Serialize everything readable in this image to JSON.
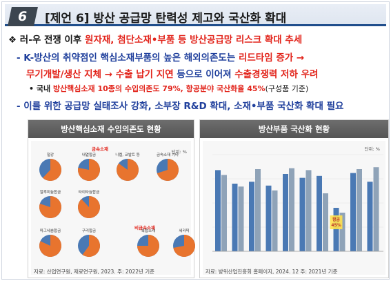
{
  "header": {
    "number": "6",
    "title": "[제언 6] 방산 공급망 탄력성 제고와 국산화 확대"
  },
  "body": {
    "line1": {
      "prefix": "❖ 러-우 전쟁 이후 ",
      "highlight": "원자재, 첨단소재•부품 등 방산공급망 리스크 확대 추세"
    },
    "line2": {
      "prefix": "- K-방산의 취약점인 핵심소재부품의 높은 해외의존도는 ",
      "highlight": "리드타임 증가 →"
    },
    "line3": {
      "highlight": "무기개발/생산 지체 → 수출 납기 지연",
      "middle": " 등으로 이어져 ",
      "highlight2": "수출경쟁력 저하 우려"
    },
    "line4": {
      "prefix": "• 국내 ",
      "highlight": "방산핵심소재 10종의 수입의존도 79%, 항공분야 국산화율 45%",
      "suffix": "(구성품 기준)"
    },
    "line5": {
      "text": "- 이를 위한 공급망 실태조사 강화, 소부장 R&D 확대, 소재•부품 국산화 확대 필요"
    }
  },
  "left_panel": {
    "title": "방산핵심소재 수입의존도 현황",
    "unit": "단위: %",
    "section_metal": "금속소재",
    "section_nonmetal": "비금속소재",
    "source": "자료: 산업연구원, 재료연구원, 2023.  주: 2022년 기준",
    "pies": [
      {
        "name": "철강",
        "share": 0.62
      },
      {
        "name": "내열합금",
        "share": 0.78
      },
      {
        "name": "니켈, 코발트 등",
        "share": 0.85
      },
      {
        "name": "금속소재 기타",
        "share": 0.7
      },
      {
        "name": "알루미늄합금",
        "share": 0.8
      },
      {
        "name": "타이타늄합금",
        "share": 0.88
      },
      {
        "name": "마그네슘합금",
        "share": 0.82
      },
      {
        "name": "구리합금",
        "share": 0.6
      },
      {
        "name": "복합소재",
        "share": 0.75
      },
      {
        "name": "세라믹",
        "share": 0.72
      }
    ],
    "colors": {
      "import": "#e8742e",
      "domestic": "#4a79b4"
    }
  },
  "right_panel": {
    "title": "방산부품 국산화 현황",
    "unit": "단위: %",
    "source": "자료: 방위산업진흥회 홈페이지, 2024. 12  주: 2021년 기준",
    "note_lines": [
      "항공",
      "45%"
    ]
  },
  "chart_data": {
    "type": "bar",
    "series": [
      {
        "values": [
          84,
          70,
          72,
          68,
          80,
          76,
          78,
          45,
          81,
          72
        ]
      },
      {
        "values": [
          79,
          67,
          85,
          63,
          86,
          84,
          60,
          40,
          85,
          87
        ]
      }
    ],
    "colors": [
      "#4a79b4",
      "#8fa3b8"
    ],
    "ylim": [
      0,
      100
    ]
  }
}
